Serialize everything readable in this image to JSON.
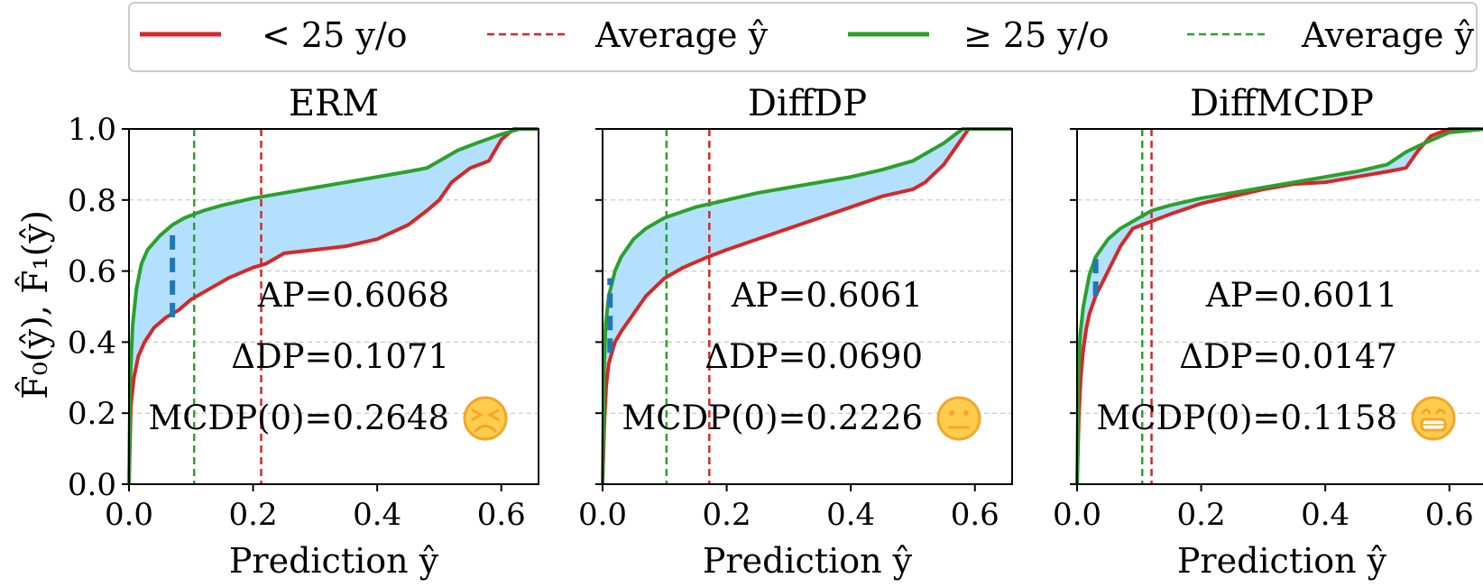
{
  "chart_data": {
    "type": "line",
    "figure_ylabel": "F̂₀(ŷ), F̂₁(ŷ)",
    "legend": [
      {
        "label": "< 25 y/o",
        "color": "#d62728",
        "style": "solid"
      },
      {
        "label": "Average ŷ",
        "color": "#d62728",
        "style": "dashed"
      },
      {
        "label": "≥ 25 y/o",
        "color": "#2ca02c",
        "style": "solid"
      },
      {
        "label": "Average ŷ",
        "color": "#2ca02c",
        "style": "dashed"
      }
    ],
    "x_ticks": [
      0.0,
      0.2,
      0.4,
      0.6
    ],
    "x_tick_labels": [
      "0.0",
      "0.2",
      "0.4",
      "0.6"
    ],
    "y_ticks": [
      0.0,
      0.2,
      0.4,
      0.6,
      0.8,
      1.0
    ],
    "y_tick_labels": [
      "0.0",
      "0.2",
      "0.4",
      "0.6",
      "0.8",
      "1.0"
    ],
    "xlim": [
      0.0,
      0.66
    ],
    "ylim": [
      0.0,
      1.0
    ],
    "fill_color": "#b3e0ff",
    "gap_marker_color": "#1f77b4",
    "panels": [
      {
        "title": "ERM",
        "xlabel": "Prediction ŷ",
        "stats": {
          "ap": "AP=0.6068",
          "dp": "ΔDP=0.1071",
          "mcdp": "MCDP(0)=0.2648"
        },
        "emoji": {
          "symbol": "😖",
          "meaning": "bad"
        },
        "avg_young": 0.213,
        "avg_old": 0.105,
        "gap_marker": {
          "x": 0.07,
          "y_low": 0.47,
          "y_high": 0.72
        },
        "series": [
          {
            "name": "< 25 y/o",
            "color": "#d62728",
            "x": [
              0,
              0.003,
              0.008,
              0.015,
              0.025,
              0.04,
              0.06,
              0.08,
              0.1,
              0.13,
              0.16,
              0.2,
              0.22,
              0.25,
              0.3,
              0.35,
              0.4,
              0.45,
              0.48,
              0.5,
              0.52,
              0.55,
              0.58,
              0.6,
              0.62,
              0.66
            ],
            "y": [
              0,
              0.22,
              0.3,
              0.36,
              0.4,
              0.44,
              0.47,
              0.49,
              0.52,
              0.55,
              0.58,
              0.61,
              0.62,
              0.65,
              0.66,
              0.67,
              0.69,
              0.73,
              0.77,
              0.8,
              0.85,
              0.89,
              0.91,
              0.97,
              1.0,
              1.0
            ]
          },
          {
            "name": "≥ 25 y/o",
            "color": "#2ca02c",
            "x": [
              0,
              0.002,
              0.006,
              0.012,
              0.02,
              0.03,
              0.05,
              0.07,
              0.09,
              0.12,
              0.15,
              0.2,
              0.25,
              0.3,
              0.35,
              0.4,
              0.45,
              0.48,
              0.5,
              0.53,
              0.56,
              0.6,
              0.63,
              0.66
            ],
            "y": [
              0,
              0.3,
              0.45,
              0.55,
              0.62,
              0.66,
              0.7,
              0.73,
              0.75,
              0.77,
              0.785,
              0.805,
              0.82,
              0.835,
              0.85,
              0.865,
              0.88,
              0.89,
              0.91,
              0.94,
              0.96,
              0.985,
              1.0,
              1.0
            ]
          }
        ]
      },
      {
        "title": "DiffDP",
        "xlabel": "Prediction ŷ",
        "stats": {
          "ap": "AP=0.6061",
          "dp": "ΔDP=0.0690",
          "mcdp": "MCDP(0)=0.2226"
        },
        "emoji": {
          "symbol": "😐",
          "meaning": "neutral"
        },
        "avg_young": 0.172,
        "avg_old": 0.103,
        "gap_marker": {
          "x": 0.012,
          "y_low": 0.37,
          "y_high": 0.58
        },
        "series": [
          {
            "name": "< 25 y/o",
            "color": "#d62728",
            "x": [
              0,
              0.003,
              0.006,
              0.01,
              0.015,
              0.02,
              0.03,
              0.05,
              0.07,
              0.1,
              0.13,
              0.17,
              0.2,
              0.25,
              0.3,
              0.35,
              0.4,
              0.45,
              0.5,
              0.52,
              0.55,
              0.57,
              0.59,
              0.66
            ],
            "y": [
              0,
              0.18,
              0.28,
              0.34,
              0.37,
              0.4,
              0.43,
              0.48,
              0.53,
              0.58,
              0.61,
              0.64,
              0.66,
              0.69,
              0.72,
              0.75,
              0.78,
              0.81,
              0.83,
              0.85,
              0.9,
              0.95,
              1.0,
              1.0
            ]
          },
          {
            "name": "≥ 25 y/o",
            "color": "#2ca02c",
            "x": [
              0,
              0.002,
              0.005,
              0.01,
              0.02,
              0.03,
              0.05,
              0.07,
              0.1,
              0.15,
              0.2,
              0.25,
              0.3,
              0.35,
              0.4,
              0.45,
              0.5,
              0.53,
              0.55,
              0.58,
              0.66
            ],
            "y": [
              0,
              0.3,
              0.45,
              0.53,
              0.6,
              0.64,
              0.69,
              0.72,
              0.75,
              0.78,
              0.8,
              0.82,
              0.835,
              0.85,
              0.865,
              0.885,
              0.91,
              0.94,
              0.96,
              1.0,
              1.0
            ]
          }
        ]
      },
      {
        "title": "DiffMCDP",
        "xlabel": "Prediction ŷ",
        "stats": {
          "ap": "AP=0.6011",
          "dp": "ΔDP=0.0147",
          "mcdp": "MCDP(0)=0.1158"
        },
        "emoji": {
          "symbol": "😁",
          "meaning": "good"
        },
        "avg_young": 0.12,
        "avg_old": 0.105,
        "gap_marker": {
          "x": 0.03,
          "y_low": 0.53,
          "y_high": 0.64
        },
        "series": [
          {
            "name": "< 25 y/o",
            "color": "#d62728",
            "x": [
              0,
              0.003,
              0.006,
              0.01,
              0.015,
              0.02,
              0.03,
              0.05,
              0.07,
              0.09,
              0.12,
              0.15,
              0.2,
              0.25,
              0.3,
              0.35,
              0.4,
              0.45,
              0.5,
              0.53,
              0.55,
              0.57,
              0.6,
              0.66
            ],
            "y": [
              0,
              0.2,
              0.3,
              0.38,
              0.44,
              0.48,
              0.53,
              0.6,
              0.67,
              0.72,
              0.74,
              0.76,
              0.79,
              0.81,
              0.83,
              0.845,
              0.85,
              0.865,
              0.88,
              0.89,
              0.94,
              0.98,
              1.0,
              1.0
            ]
          },
          {
            "name": "≥ 25 y/o",
            "color": "#2ca02c",
            "x": [
              0,
              0.002,
              0.005,
              0.01,
              0.02,
              0.03,
              0.05,
              0.07,
              0.1,
              0.12,
              0.15,
              0.2,
              0.25,
              0.3,
              0.35,
              0.4,
              0.45,
              0.5,
              0.53,
              0.56,
              0.6,
              0.66
            ],
            "y": [
              0,
              0.3,
              0.42,
              0.5,
              0.59,
              0.64,
              0.69,
              0.72,
              0.75,
              0.77,
              0.785,
              0.805,
              0.82,
              0.835,
              0.85,
              0.865,
              0.88,
              0.9,
              0.935,
              0.96,
              0.99,
              1.0
            ]
          }
        ]
      }
    ]
  }
}
